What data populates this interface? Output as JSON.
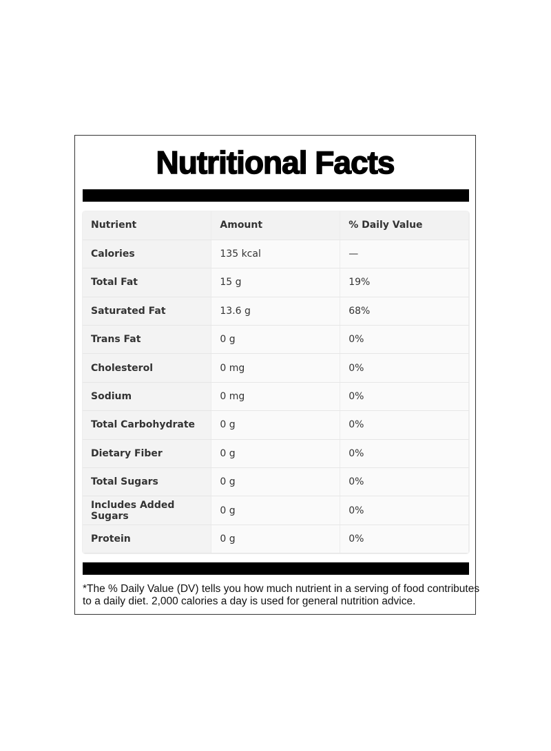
{
  "title": "Nutritional Facts",
  "table": {
    "headers": [
      "Nutrient",
      "Amount",
      "% Daily Value"
    ],
    "rows": [
      [
        "Calories",
        "135 kcal",
        "—"
      ],
      [
        "Total Fat",
        "15 g",
        "19%"
      ],
      [
        "Saturated Fat",
        "13.6 g",
        "68%"
      ],
      [
        "Trans Fat",
        "0 g",
        "0%"
      ],
      [
        "Cholesterol",
        "0 mg",
        "0%"
      ],
      [
        "Sodium",
        "0 mg",
        "0%"
      ],
      [
        "Total Carbohydrate",
        "0 g",
        "0%"
      ],
      [
        "Dietary Fiber",
        "0 g",
        "0%"
      ],
      [
        "Total Sugars",
        "0 g",
        "0%"
      ],
      [
        "Includes Added Sugars",
        "0 g",
        "0%"
      ],
      [
        "Protein",
        "0 g",
        "0%"
      ]
    ]
  },
  "footnote": {
    "line1": "*The % Daily Value (DV) tells you how much nutrient in a serving of food contributes",
    "line2": "to a daily diet. 2,000 calories a day is used for general nutrition advice."
  }
}
